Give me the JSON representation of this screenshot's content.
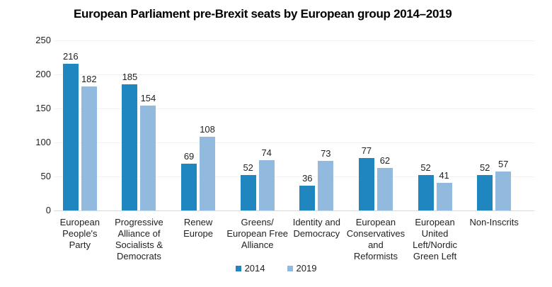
{
  "chart_data": {
    "type": "bar",
    "title": "European Parliament pre-Brexit seats by European group 2014–2019",
    "categories": [
      "European People's Party",
      "Progressive Alliance of Socialists & Democrats",
      "Renew Europe",
      "Greens/European Free Alliance",
      "Identity and Democracy",
      "European Conservatives and Reformists",
      "European United Left/Nordic Green Left",
      "Non-Inscrits"
    ],
    "category_label_lines": [
      [
        "European",
        "People's",
        "Party"
      ],
      [
        "Progressive",
        "Alliance of",
        "Socialists &",
        "Democrats"
      ],
      [
        "Renew",
        "Europe"
      ],
      [
        "Greens/",
        "European Free",
        "Alliance"
      ],
      [
        "Identity and",
        "Democracy"
      ],
      [
        "European",
        "Conservatives",
        "and",
        "Reformists"
      ],
      [
        "European",
        "United",
        "Left/Nordic",
        "Green Left"
      ],
      [
        "Non-Inscrits"
      ]
    ],
    "series": [
      {
        "name": "2014",
        "color": "#1f86bf",
        "values": [
          216,
          185,
          69,
          52,
          36,
          77,
          52,
          52
        ]
      },
      {
        "name": "2019",
        "color": "#92bade",
        "values": [
          182,
          154,
          108,
          74,
          73,
          62,
          41,
          57
        ]
      }
    ],
    "yticks": [
      0,
      50,
      100,
      150,
      200,
      250
    ],
    "ylim": [
      0,
      250
    ],
    "xlabel": "",
    "ylabel": "",
    "grid": true,
    "show_value_labels": true,
    "legend_position": "bottom"
  },
  "style": {
    "background": "#ffffff",
    "title_color": "#000000",
    "text_color": "#222222",
    "gridline_color": "#f2f2f2",
    "baseline_color": "#d9d9d9",
    "color_2014": "#1f86bf",
    "color_2019": "#92bade"
  }
}
